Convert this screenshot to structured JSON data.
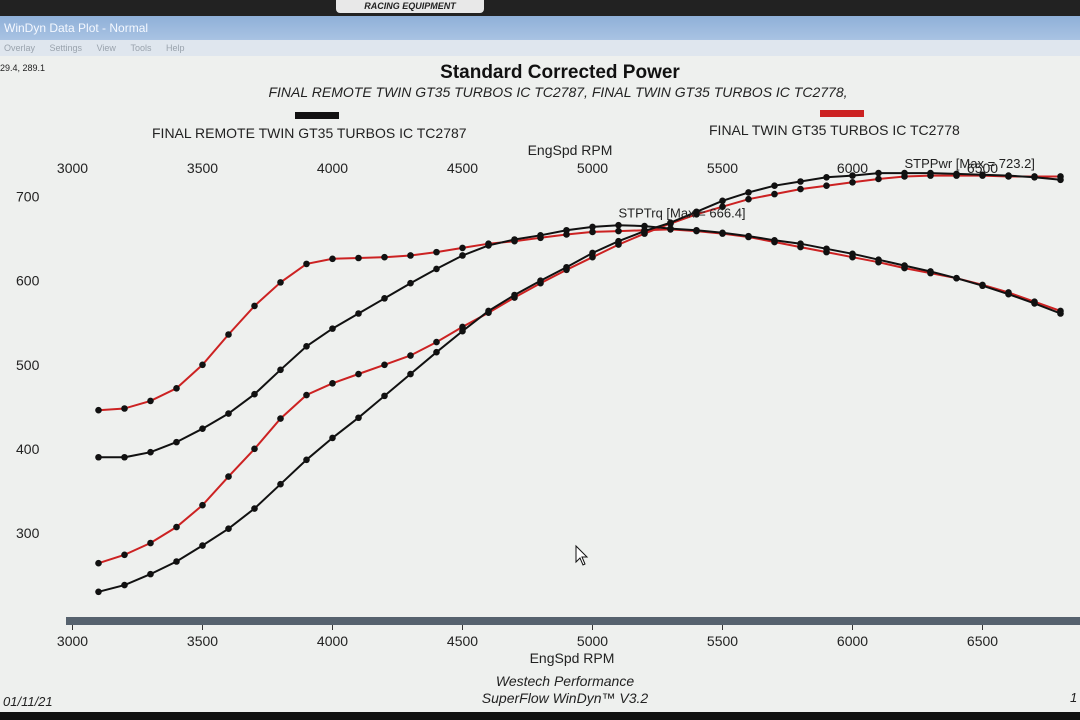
{
  "window": {
    "title": "WinDyn Data Plot - Normal",
    "menu": [
      "Overlay",
      "Settings",
      "View",
      "Tools",
      "Help"
    ],
    "cursor_readout": "29.4, 289.1",
    "brand": "RACING EQUIPMENT"
  },
  "footer": {
    "date": "01/11/21",
    "company": "Westech Performance",
    "software": "SuperFlow WinDyn™ V3.2",
    "page": "1"
  },
  "chart_data": {
    "type": "line",
    "title": "Standard Corrected Power",
    "subtitle": "FINAL REMOTE TWIN GT35 TURBOS IC TC2787, FINAL TWIN GT35 TURBOS IC TC2778,",
    "xlabel": "EngSpd RPM",
    "ylabel": "",
    "xlim": [
      2975,
      6875
    ],
    "ylim": [
      200,
      740
    ],
    "xticks": [
      3000,
      3500,
      4000,
      4500,
      5000,
      5500,
      6000,
      6500
    ],
    "yticks": [
      300,
      400,
      500,
      600,
      700
    ],
    "grid": false,
    "legend": [
      {
        "name": "FINAL REMOTE TWIN GT35 TURBOS IC TC2787",
        "color": "#111111",
        "position": "top-left"
      },
      {
        "name": "FINAL TWIN GT35 TURBOS IC TC2778",
        "color": "#cc2222",
        "position": "top-right"
      }
    ],
    "annotations": [
      {
        "text": "STPTrq [Max = 666.4]",
        "x": 5100,
        "y": 675
      },
      {
        "text": "STPPwr [Max = 723.2]",
        "x": 6200,
        "y": 734
      }
    ],
    "x": [
      3100,
      3200,
      3300,
      3400,
      3500,
      3600,
      3700,
      3800,
      3900,
      4000,
      4100,
      4200,
      4300,
      4400,
      4500,
      4600,
      4700,
      4800,
      4900,
      5000,
      5100,
      5200,
      5300,
      5400,
      5500,
      5600,
      5700,
      5800,
      5900,
      6000,
      6100,
      6200,
      6300,
      6400,
      6500,
      6600,
      6700,
      6800
    ],
    "series": [
      {
        "name": "FINAL REMOTE TWIN GT35 TURBOS IC TC2787",
        "quantity": "STPTrq",
        "color": "#111111",
        "values": [
          390,
          390,
          396,
          408,
          424,
          442,
          465,
          494,
          522,
          543,
          561,
          579,
          597,
          614,
          630,
          642,
          649,
          654,
          660,
          664,
          666,
          665,
          662,
          660,
          657,
          653,
          648,
          644,
          638,
          632,
          625,
          618,
          611,
          603,
          594,
          584,
          573,
          561
        ]
      },
      {
        "name": "FINAL REMOTE TWIN GT35 TURBOS IC TC2787",
        "quantity": "STPPwr",
        "color": "#111111",
        "values": [
          230,
          238,
          251,
          266,
          285,
          305,
          329,
          358,
          387,
          413,
          437,
          463,
          489,
          515,
          540,
          564,
          583,
          600,
          616,
          633,
          647,
          659,
          669,
          682,
          695,
          705,
          713,
          718,
          723,
          725,
          728,
          728,
          728,
          727,
          726,
          725,
          723,
          720
        ]
      },
      {
        "name": "FINAL TWIN GT35 TURBOS IC TC2778",
        "quantity": "STPTrq",
        "color": "#cc2222",
        "values": [
          446,
          448,
          457,
          472,
          500,
          536,
          570,
          598,
          620,
          626,
          627,
          628,
          630,
          634,
          639,
          644,
          647,
          651,
          655,
          658,
          659,
          660,
          661,
          659,
          656,
          652,
          646,
          640,
          634,
          628,
          622,
          615,
          609,
          603,
          595,
          586,
          575,
          564
        ]
      },
      {
        "name": "FINAL TWIN GT35 TURBOS IC TC2778",
        "quantity": "STPPwr",
        "color": "#cc2222",
        "values": [
          264,
          274,
          288,
          307,
          333,
          367,
          400,
          436,
          464,
          478,
          489,
          500,
          511,
          527,
          545,
          562,
          580,
          597,
          613,
          628,
          643,
          656,
          668,
          679,
          688,
          697,
          703,
          709,
          713,
          717,
          721,
          724,
          725,
          725,
          725,
          724,
          724,
          724
        ]
      }
    ]
  }
}
